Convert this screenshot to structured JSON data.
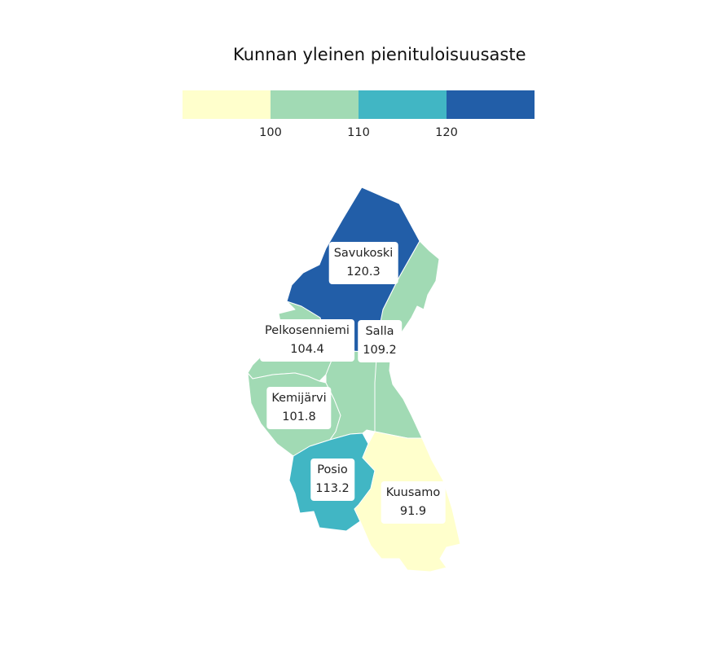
{
  "title": "Kunnan yleinen pienituloisuusaste",
  "legend": {
    "colors": [
      "#ffffcc",
      "#a1dab4",
      "#41b6c4",
      "#225ea8"
    ],
    "ticks": [
      "100",
      "110",
      "120"
    ]
  },
  "municipalities": [
    {
      "id": "savukoski",
      "name": "Savukoski",
      "value": "120.3",
      "color": "#225ea8"
    },
    {
      "id": "salla",
      "name": "Salla",
      "value": "109.2",
      "color": "#a1dab4"
    },
    {
      "id": "pelkosenniemi",
      "name": "Pelkosenniemi",
      "value": "104.4",
      "color": "#a1dab4"
    },
    {
      "id": "kemijarvi",
      "name": "Kemijärvi",
      "value": "101.8",
      "color": "#a1dab4"
    },
    {
      "id": "posio",
      "name": "Posio",
      "value": "113.2",
      "color": "#41b6c4"
    },
    {
      "id": "kuusamo",
      "name": "Kuusamo",
      "value": "91.9",
      "color": "#ffffcc"
    }
  ]
}
